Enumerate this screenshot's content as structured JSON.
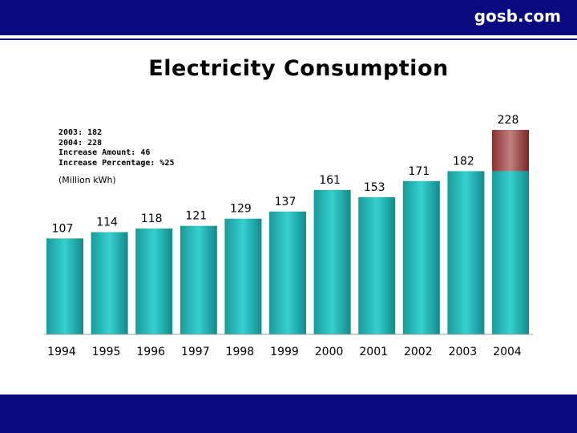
{
  "header": {
    "brand": "gosb.com"
  },
  "chart_data": {
    "type": "bar",
    "title": "Electricity Consumption",
    "ylabel": "(Million kWh)",
    "categories": [
      "1994",
      "1995",
      "1996",
      "1997",
      "1998",
      "1999",
      "2000",
      "2001",
      "2002",
      "2003",
      "2004"
    ],
    "values": [
      107,
      114,
      118,
      121,
      129,
      137,
      161,
      153,
      171,
      182,
      228
    ],
    "increase_segment": {
      "category": "2004",
      "from": 182,
      "to": 228
    },
    "annotations": [
      "2003: 182",
      "2004: 228",
      "Increase Amount: 46",
      "Increase Percentage: %25"
    ],
    "ylim": [
      0,
      228
    ],
    "colors": {
      "bar": "#2ec4c4",
      "increase": "#b06060",
      "frame": "#0a0a80"
    }
  }
}
